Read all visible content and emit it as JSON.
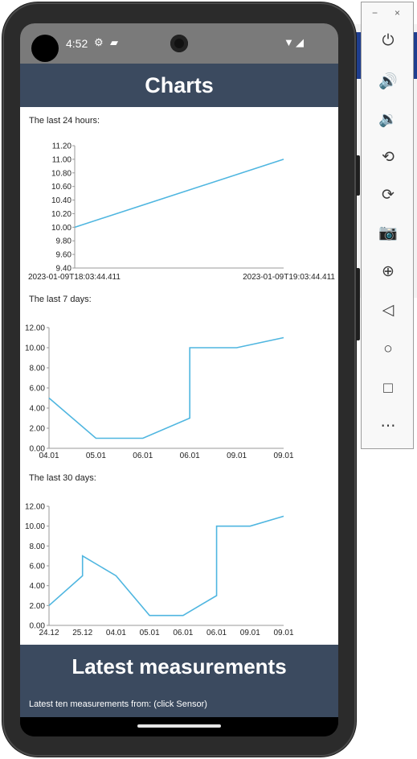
{
  "status_bar": {
    "time": "4:52",
    "settings_icon": "gear-icon",
    "sd_icon": "sd-card-icon",
    "wifi_icon": "wifi-icon",
    "signal_icon": "signal-icon"
  },
  "app_bar": {
    "title": "Charts"
  },
  "sections": [
    {
      "title": "The last 24 hours:"
    },
    {
      "title": "The last 7 days:"
    },
    {
      "title": "The last 30 days:"
    }
  ],
  "footer": {
    "title": "Latest measurements",
    "subtitle": "Latest ten measurements from: (click Sensor)"
  },
  "emulator_toolbar": {
    "minimize": "−",
    "close": "×",
    "tools": [
      "power-icon",
      "volume-up-icon",
      "volume-down-icon",
      "rotate-left-icon",
      "rotate-right-icon",
      "camera-icon",
      "zoom-icon",
      "back-icon",
      "home-icon",
      "overview-icon",
      "more-icon"
    ]
  },
  "colors": {
    "appbar": "#3b4a5f",
    "line": "#4fb6e0"
  },
  "chart_data": [
    {
      "type": "line",
      "title": "The last 24 hours:",
      "x": [
        "2023-01-09T18:03:44.411",
        "2023-01-09T19:03:44.411"
      ],
      "y_ticks": [
        "9.40",
        "9.60",
        "9.80",
        "10.00",
        "10.20",
        "10.40",
        "10.60",
        "10.80",
        "11.00",
        "11.20"
      ],
      "ylim": [
        9.4,
        11.2
      ],
      "series": [
        {
          "values": [
            10.0,
            11.0
          ]
        }
      ]
    },
    {
      "type": "line",
      "title": "The last 7 days:",
      "categories": [
        "04.01",
        "05.01",
        "06.01",
        "06.01",
        "09.01",
        "09.01"
      ],
      "y_ticks": [
        "0.00",
        "2.00",
        "4.00",
        "6.00",
        "8.00",
        "10.00",
        "12.00"
      ],
      "ylim": [
        0,
        12
      ],
      "points": [
        [
          0,
          5
        ],
        [
          1,
          1
        ],
        [
          2,
          1
        ],
        [
          3,
          3
        ],
        [
          3,
          10
        ],
        [
          4,
          10
        ],
        [
          5,
          11
        ]
      ]
    },
    {
      "type": "line",
      "title": "The last 30 days:",
      "categories": [
        "24.12",
        "25.12",
        "04.01",
        "05.01",
        "06.01",
        "06.01",
        "09.01",
        "09.01"
      ],
      "y_ticks": [
        "0.00",
        "2.00",
        "4.00",
        "6.00",
        "8.00",
        "10.00",
        "12.00"
      ],
      "ylim": [
        0,
        12
      ],
      "points": [
        [
          0,
          2
        ],
        [
          1,
          5
        ],
        [
          1,
          7
        ],
        [
          2,
          5
        ],
        [
          3,
          1
        ],
        [
          4,
          1
        ],
        [
          5,
          3
        ],
        [
          5,
          10
        ],
        [
          6,
          10
        ],
        [
          7,
          11
        ]
      ]
    }
  ]
}
